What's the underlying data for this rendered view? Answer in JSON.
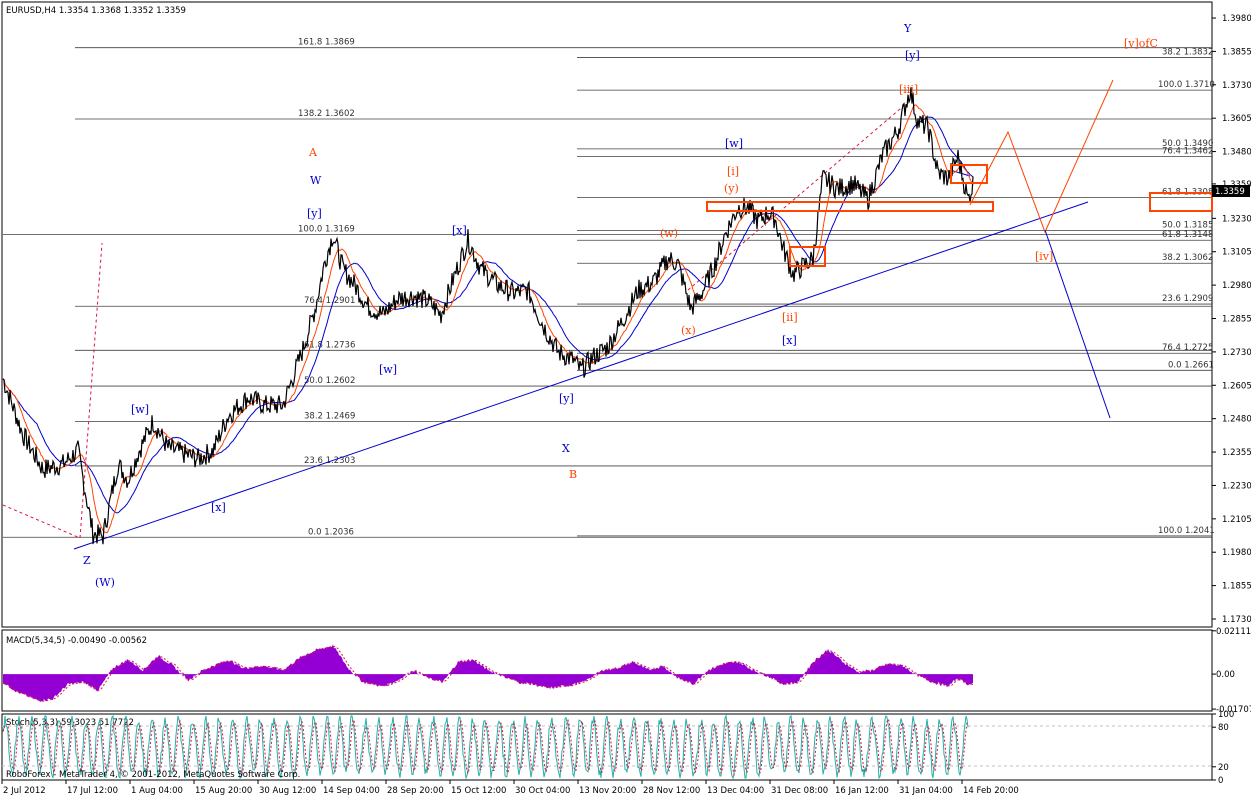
{
  "header": {
    "main": "EURUSD,H4  1.3354 1.3368 1.3352 1.3359",
    "macd": "MACD(5,34,5) -0.00490 -0.00562",
    "stoch": "Stoch(5,3,3) 59.3023 51.7722",
    "footer": "RoboForex - MetaTrader 4, © 2001-2012, MetaQuotes Software Corp."
  },
  "colors": {
    "price": "#000000",
    "wave_blue": "#0000cd",
    "wave_orange": "#ff4500",
    "macd": "#9400d3",
    "stoch": "#20b2aa",
    "fib": "#404040"
  },
  "chart_data": [
    {
      "type": "line",
      "title": "EURUSD,H4",
      "x_ticks": [
        "2 Jul 2012",
        "17 Jul 12:00",
        "1 Aug 04:00",
        "15 Aug 20:00",
        "30 Aug 12:00",
        "14 Sep 04:00",
        "28 Sep 20:00",
        "15 Oct 12:00",
        "30 Oct 04:00",
        "13 Nov 20:00",
        "28 Nov 12:00",
        "13 Dec 04:00",
        "31 Dec 08:00",
        "16 Jan 12:00",
        "31 Jan 04:00",
        "14 Feb 20:00"
      ],
      "y_ticks": [
        "1.3980",
        "1.3855",
        "1.3730",
        "1.3605",
        "1.3480",
        "1.3359",
        "1.3230",
        "1.3105",
        "1.2980",
        "1.2855",
        "1.2730",
        "1.2605",
        "1.2480",
        "1.2355",
        "1.2230",
        "1.2105",
        "1.1980",
        "1.1855",
        "1.1730"
      ],
      "ylim": [
        1.17,
        1.404
      ],
      "current_price": "1.3359",
      "price_path": [
        [
          0,
          1.263
        ],
        [
          20,
          1.242
        ],
        [
          40,
          1.229
        ],
        [
          60,
          1.231
        ],
        [
          75,
          1.236
        ],
        [
          90,
          1.205
        ],
        [
          100,
          1.204
        ],
        [
          115,
          1.231
        ],
        [
          125,
          1.225
        ],
        [
          135,
          1.235
        ],
        [
          150,
          1.247
        ],
        [
          165,
          1.237
        ],
        [
          180,
          1.235
        ],
        [
          195,
          1.233
        ],
        [
          210,
          1.236
        ],
        [
          225,
          1.249
        ],
        [
          245,
          1.256
        ],
        [
          262,
          1.253
        ],
        [
          280,
          1.253
        ],
        [
          300,
          1.274
        ],
        [
          312,
          1.289
        ],
        [
          322,
          1.307
        ],
        [
          330,
          1.3169
        ],
        [
          340,
          1.304
        ],
        [
          350,
          1.299
        ],
        [
          365,
          1.29
        ],
        [
          380,
          1.287
        ],
        [
          395,
          1.293
        ],
        [
          410,
          1.294
        ],
        [
          425,
          1.292
        ],
        [
          438,
          1.287
        ],
        [
          450,
          1.3
        ],
        [
          465,
          1.315
        ],
        [
          478,
          1.304
        ],
        [
          495,
          1.298
        ],
        [
          510,
          1.295
        ],
        [
          525,
          1.296
        ],
        [
          540,
          1.283
        ],
        [
          555,
          1.273
        ],
        [
          570,
          1.27
        ],
        [
          578,
          1.2661
        ],
        [
          590,
          1.271
        ],
        [
          605,
          1.275
        ],
        [
          620,
          1.285
        ],
        [
          635,
          1.296
        ],
        [
          650,
          1.299
        ],
        [
          665,
          1.308
        ],
        [
          675,
          1.306
        ],
        [
          688,
          1.289
        ],
        [
          700,
          1.296
        ],
        [
          712,
          1.306
        ],
        [
          722,
          1.317
        ],
        [
          735,
          1.327
        ],
        [
          745,
          1.327
        ],
        [
          755,
          1.322
        ],
        [
          765,
          1.325
        ],
        [
          772,
          1.323
        ],
        [
          780,
          1.312
        ],
        [
          790,
          1.302
        ],
        [
          800,
          1.305
        ],
        [
          810,
          1.308
        ],
        [
          820,
          1.338
        ],
        [
          835,
          1.334
        ],
        [
          850,
          1.336
        ],
        [
          865,
          1.33
        ],
        [
          880,
          1.347
        ],
        [
          895,
          1.356
        ],
        [
          907,
          1.371
        ],
        [
          915,
          1.359
        ],
        [
          925,
          1.357
        ],
        [
          935,
          1.34
        ],
        [
          945,
          1.338
        ],
        [
          955,
          1.346
        ],
        [
          965,
          1.33
        ],
        [
          970,
          1.3359
        ]
      ],
      "fib_levels": [
        {
          "ratio": "161.8",
          "price": "1.3869",
          "label": "161.8 1.3869"
        },
        {
          "ratio": "38.2",
          "price": "1.3832",
          "label": "38.2 1.3832"
        },
        {
          "ratio": "100.0",
          "price": "1.3710",
          "label": "100.0 1.3710"
        },
        {
          "ratio": "138.2",
          "price": "1.3602",
          "label": "138.2 1.3602"
        },
        {
          "ratio": "50.0",
          "price": "1.3490",
          "label": "50.0 1.3490"
        },
        {
          "ratio": "76.4",
          "price": "1.3462",
          "label": "76.4 1.3462"
        },
        {
          "ratio": "61.8",
          "price": "1.3308",
          "label": "61.8 1.3308"
        },
        {
          "ratio": "50.0",
          "price": "1.3185",
          "label": "50.0 1.3185"
        },
        {
          "ratio": "100.0",
          "price": "1.3169",
          "label": "100.0 1.3169"
        },
        {
          "ratio": "61.8",
          "price": "1.3148",
          "label": "61.8 1.3148"
        },
        {
          "ratio": "38.2",
          "price": "1.3062",
          "label": "38.2 1.3062"
        },
        {
          "ratio": "23.6",
          "price": "1.2909",
          "label": "23.6 1.2909"
        },
        {
          "ratio": "76.4",
          "price": "1.2901",
          "label": "76.4 1.2901"
        },
        {
          "ratio": "61.8",
          "price": "1.2736",
          "label": "61.8 1.2736"
        },
        {
          "ratio": "76.4",
          "price": "1.2725",
          "label": "76.4 1.2725"
        },
        {
          "ratio": "0.0",
          "price": "1.2661",
          "label": "0.0 1.2661"
        },
        {
          "ratio": "50.0",
          "price": "1.2602",
          "label": "50.0 1.2602"
        },
        {
          "ratio": "38.2",
          "price": "1.2469",
          "label": "38.2 1.2469"
        },
        {
          "ratio": "23.6",
          "price": "1.2303",
          "label": "23.6 1.2303"
        },
        {
          "ratio": "100.0",
          "price": "1.2041",
          "label": "100.0 1.2041"
        },
        {
          "ratio": "0.0",
          "price": "1.2036",
          "label": "0.0 1.2036"
        }
      ],
      "wave_labels": [
        {
          "text": "Y",
          "color": "blue"
        },
        {
          "text": "[y]",
          "color": "blue"
        },
        {
          "text": "[v]ofC",
          "color": "orange"
        },
        {
          "text": "[iii]",
          "color": "orange"
        },
        {
          "text": "A",
          "color": "orange"
        },
        {
          "text": "W",
          "color": "blue"
        },
        {
          "text": "[y]",
          "color": "blue"
        },
        {
          "text": "[x]",
          "color": "blue"
        },
        {
          "text": "[w]",
          "color": "blue"
        },
        {
          "text": "[i]",
          "color": "orange"
        },
        {
          "text": "(y)",
          "color": "orange"
        },
        {
          "text": "(w)",
          "color": "orange"
        },
        {
          "text": "(x)",
          "color": "orange"
        },
        {
          "text": "[ii]",
          "color": "orange"
        },
        {
          "text": "[x]",
          "color": "blue"
        },
        {
          "text": "[iv]",
          "color": "orange"
        },
        {
          "text": "[w]",
          "color": "blue"
        },
        {
          "text": "[y]",
          "color": "blue"
        },
        {
          "text": "[w]",
          "color": "blue"
        },
        {
          "text": "[x]",
          "color": "blue"
        },
        {
          "text": "X",
          "color": "blue"
        },
        {
          "text": "B",
          "color": "orange"
        },
        {
          "text": "Z",
          "color": "blue"
        },
        {
          "text": "(W)",
          "color": "blue"
        }
      ]
    },
    {
      "type": "bar",
      "title": "MACD(5,34,5)",
      "y_ticks": [
        "0.02111",
        "0.00",
        "-0.01707"
      ],
      "ylim": [
        -0.018,
        0.0215
      ],
      "values_at_bar_index": [
        [
          0,
          -0.004
        ],
        [
          15,
          -0.009
        ],
        [
          35,
          -0.013
        ],
        [
          50,
          -0.012
        ],
        [
          65,
          -0.005
        ],
        [
          80,
          -0.004
        ],
        [
          95,
          -0.008
        ],
        [
          110,
          0.003
        ],
        [
          125,
          0.007
        ],
        [
          140,
          0.002
        ],
        [
          155,
          0.009
        ],
        [
          170,
          0.004
        ],
        [
          185,
          -0.003
        ],
        [
          200,
          0.002
        ],
        [
          225,
          0.007
        ],
        [
          240,
          0.003
        ],
        [
          260,
          0.004
        ],
        [
          280,
          0.002
        ],
        [
          300,
          0.009
        ],
        [
          315,
          0.012
        ],
        [
          330,
          0.014
        ],
        [
          345,
          0.003
        ],
        [
          360,
          -0.004
        ],
        [
          380,
          -0.006
        ],
        [
          395,
          -0.003
        ],
        [
          410,
          0.002
        ],
        [
          425,
          -0.002
        ],
        [
          440,
          -0.004
        ],
        [
          455,
          0.006
        ],
        [
          470,
          0.007
        ],
        [
          485,
          0.002
        ],
        [
          500,
          -0.001
        ],
        [
          515,
          -0.004
        ],
        [
          530,
          -0.005
        ],
        [
          545,
          -0.007
        ],
        [
          560,
          -0.006
        ],
        [
          580,
          -0.004
        ],
        [
          600,
          0.002
        ],
        [
          615,
          0.003
        ],
        [
          630,
          0.006
        ],
        [
          645,
          0.002
        ],
        [
          660,
          0.004
        ],
        [
          675,
          -0.002
        ],
        [
          690,
          -0.005
        ],
        [
          705,
          0.002
        ],
        [
          720,
          0.005
        ],
        [
          735,
          0.006
        ],
        [
          750,
          0.002
        ],
        [
          765,
          -0.001
        ],
        [
          780,
          -0.005
        ],
        [
          795,
          -0.004
        ],
        [
          810,
          0.006
        ],
        [
          825,
          0.012
        ],
        [
          840,
          0.006
        ],
        [
          855,
          0.001
        ],
        [
          870,
          0.002
        ],
        [
          885,
          0.005
        ],
        [
          900,
          0.004
        ],
        [
          915,
          -0.001
        ],
        [
          930,
          -0.004
        ],
        [
          945,
          -0.006
        ],
        [
          955,
          -0.002
        ],
        [
          965,
          -0.005
        ]
      ]
    },
    {
      "type": "line",
      "title": "Stoch(5,3,3)",
      "y_ticks": [
        "100",
        "80",
        "20",
        "0"
      ],
      "ylim": [
        0,
        100
      ]
    }
  ]
}
